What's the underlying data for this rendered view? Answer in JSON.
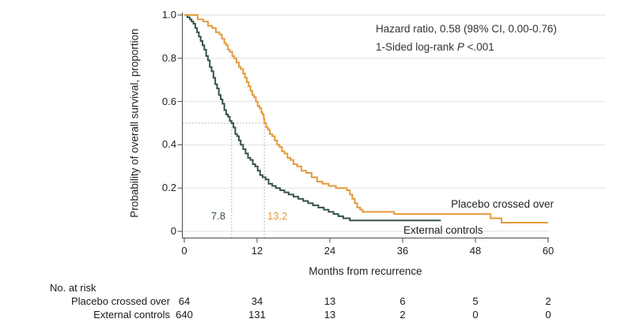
{
  "annotation": {
    "line1": "Hazard ratio, 0.58 (98% CI, 0.00-0.76)",
    "line2_prefix": "1-Sided log-rank ",
    "line2_stat": "P",
    "line2_suffix": " <.001"
  },
  "colors": {
    "placebo_orange": "#E49A3C",
    "external_teal": "#35524C",
    "gridline": "#e2e2e2",
    "axis": "#4a4a4a",
    "dotted_guide": "#a5a5a5",
    "text": "#1a1a1a"
  },
  "chart_data": {
    "type": "line",
    "subtype": "kaplan-meier-step",
    "title": "",
    "xlabel": "Months from recurrence",
    "ylabel": "Probability of overall survival, proportion",
    "xlim": [
      0,
      60
    ],
    "ylim": [
      0,
      1.0
    ],
    "x_ticks": [
      0,
      12,
      24,
      36,
      48,
      60
    ],
    "x_tick_labels": [
      "0",
      "12",
      "24",
      "36",
      "48",
      "60"
    ],
    "y_ticks": [
      0,
      0.2,
      0.4,
      0.6,
      0.8,
      1.0
    ],
    "y_tick_labels": [
      "0",
      "0.2",
      "0.4",
      "0.6",
      "0.8",
      "1.0"
    ],
    "grid": true,
    "legend_position": "inline-right",
    "median_reference_level": 0.5,
    "series": [
      {
        "name": "External controls",
        "color": "#35524C",
        "median_months": 7.8,
        "median_label": "7.8",
        "points": [
          [
            0,
            1.0
          ],
          [
            0.5,
            0.99
          ],
          [
            0.9,
            0.98
          ],
          [
            1.2,
            0.97
          ],
          [
            1.5,
            0.96
          ],
          [
            1.8,
            0.94
          ],
          [
            2.1,
            0.92
          ],
          [
            2.4,
            0.9
          ],
          [
            2.7,
            0.88
          ],
          [
            3.0,
            0.86
          ],
          [
            3.3,
            0.84
          ],
          [
            3.6,
            0.81
          ],
          [
            3.9,
            0.79
          ],
          [
            4.2,
            0.76
          ],
          [
            4.5,
            0.74
          ],
          [
            4.8,
            0.71
          ],
          [
            5.1,
            0.68
          ],
          [
            5.4,
            0.66
          ],
          [
            5.7,
            0.63
          ],
          [
            6.0,
            0.61
          ],
          [
            6.3,
            0.59
          ],
          [
            6.6,
            0.56
          ],
          [
            6.9,
            0.54
          ],
          [
            7.2,
            0.53
          ],
          [
            7.5,
            0.51
          ],
          [
            7.8,
            0.5
          ],
          [
            8.1,
            0.48
          ],
          [
            8.4,
            0.45
          ],
          [
            8.7,
            0.44
          ],
          [
            9.0,
            0.42
          ],
          [
            9.3,
            0.4
          ],
          [
            9.7,
            0.38
          ],
          [
            10.1,
            0.36
          ],
          [
            10.5,
            0.34
          ],
          [
            10.9,
            0.33
          ],
          [
            11.3,
            0.31
          ],
          [
            11.7,
            0.3
          ],
          [
            12.1,
            0.28
          ],
          [
            12.5,
            0.26
          ],
          [
            12.9,
            0.25
          ],
          [
            13.4,
            0.24
          ],
          [
            13.9,
            0.22
          ],
          [
            14.5,
            0.21
          ],
          [
            15.1,
            0.2
          ],
          [
            15.8,
            0.19
          ],
          [
            16.5,
            0.18
          ],
          [
            17.2,
            0.17
          ],
          [
            18.0,
            0.16
          ],
          [
            18.8,
            0.15
          ],
          [
            19.6,
            0.14
          ],
          [
            20.4,
            0.13
          ],
          [
            21.2,
            0.12
          ],
          [
            22.1,
            0.11
          ],
          [
            23.0,
            0.1
          ],
          [
            23.8,
            0.09
          ],
          [
            24.6,
            0.08
          ],
          [
            25.4,
            0.07
          ],
          [
            26.2,
            0.06
          ],
          [
            27.3,
            0.05
          ],
          [
            42.3,
            0.05
          ]
        ]
      },
      {
        "name": "Placebo crossed over",
        "color": "#E49A3C",
        "median_months": 13.2,
        "median_label": "13.2",
        "points": [
          [
            0,
            1.0
          ],
          [
            2.2,
            0.98
          ],
          [
            3.1,
            0.97
          ],
          [
            3.9,
            0.95
          ],
          [
            4.6,
            0.94
          ],
          [
            5.2,
            0.92
          ],
          [
            5.8,
            0.91
          ],
          [
            6.2,
            0.89
          ],
          [
            6.6,
            0.87
          ],
          [
            6.9,
            0.86
          ],
          [
            7.2,
            0.84
          ],
          [
            7.5,
            0.83
          ],
          [
            7.9,
            0.81
          ],
          [
            8.2,
            0.8
          ],
          [
            8.6,
            0.78
          ],
          [
            9.0,
            0.76
          ],
          [
            9.3,
            0.75
          ],
          [
            9.7,
            0.73
          ],
          [
            10.0,
            0.71
          ],
          [
            10.3,
            0.69
          ],
          [
            10.6,
            0.67
          ],
          [
            10.9,
            0.65
          ],
          [
            11.2,
            0.63
          ],
          [
            11.5,
            0.62
          ],
          [
            11.8,
            0.6
          ],
          [
            12.1,
            0.58
          ],
          [
            12.4,
            0.57
          ],
          [
            12.7,
            0.55
          ],
          [
            12.9,
            0.54
          ],
          [
            13.1,
            0.52
          ],
          [
            13.2,
            0.5
          ],
          [
            13.5,
            0.48
          ],
          [
            13.8,
            0.47
          ],
          [
            14.1,
            0.45
          ],
          [
            14.5,
            0.44
          ],
          [
            14.9,
            0.42
          ],
          [
            15.3,
            0.4
          ],
          [
            15.7,
            0.39
          ],
          [
            16.1,
            0.37
          ],
          [
            16.5,
            0.36
          ],
          [
            17.0,
            0.34
          ],
          [
            17.5,
            0.33
          ],
          [
            18.0,
            0.31
          ],
          [
            18.6,
            0.3
          ],
          [
            19.3,
            0.28
          ],
          [
            20.1,
            0.27
          ],
          [
            21.0,
            0.25
          ],
          [
            21.9,
            0.23
          ],
          [
            22.8,
            0.22
          ],
          [
            23.8,
            0.21
          ],
          [
            25.0,
            0.2
          ],
          [
            26.8,
            0.19
          ],
          [
            27.3,
            0.17
          ],
          [
            27.7,
            0.15
          ],
          [
            28.1,
            0.13
          ],
          [
            28.5,
            0.11
          ],
          [
            29.0,
            0.1
          ],
          [
            29.4,
            0.09
          ],
          [
            34.6,
            0.08
          ],
          [
            50.5,
            0.06
          ],
          [
            52.3,
            0.04
          ],
          [
            60,
            0.04
          ]
        ]
      }
    ]
  },
  "risk_table": {
    "title": "No. at risk",
    "rows": [
      {
        "label": "Placebo crossed over",
        "values": [
          "64",
          "34",
          "13",
          "6",
          "5",
          "2"
        ]
      },
      {
        "label": "External controls",
        "values": [
          "640",
          "131",
          "13",
          "2",
          "0",
          "0"
        ]
      }
    ]
  }
}
